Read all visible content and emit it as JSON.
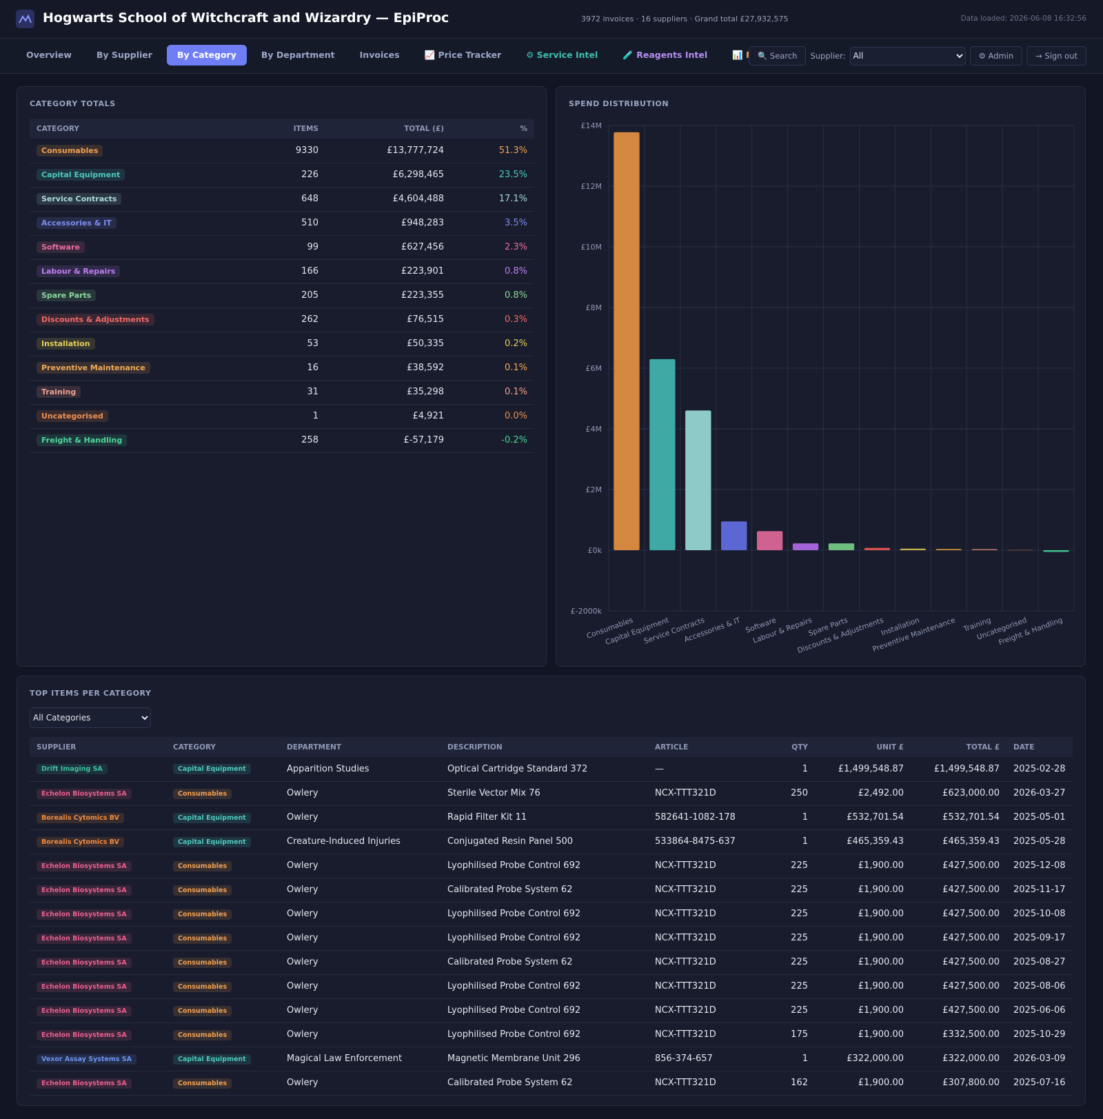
{
  "header": {
    "title": "Hogwarts School of Witchcraft and Wizardry — EpiProc",
    "stats": "3972 invoices · 16 suppliers · Grand total £27,932,575",
    "loaded": "Data loaded: 2026-06-08 16:32:56"
  },
  "nav": {
    "tabs": [
      {
        "label": "Overview"
      },
      {
        "label": "By Supplier"
      },
      {
        "label": "By Category",
        "active": true
      },
      {
        "label": "By Department"
      },
      {
        "label": "Invoices"
      },
      {
        "label": "📈 Price Tracker"
      },
      {
        "label": "⚙ Service Intel",
        "color": "#3fbfae"
      },
      {
        "label": "🧪 Reagents Intel",
        "color": "#b48ef0"
      },
      {
        "label": "📊 Reports",
        "color": "#f0a050"
      }
    ],
    "search": "Search",
    "supplier_label": "Supplier:",
    "supplier_value": "All",
    "admin": "⚙ Admin",
    "signout": "→ Sign out"
  },
  "category_totals": {
    "title": "CATEGORY TOTALS",
    "columns": [
      "CATEGORY",
      "ITEMS",
      "TOTAL (£)",
      "%"
    ],
    "rows": [
      {
        "name": "Consumables",
        "items": "9330",
        "total": "£13,777,724",
        "pct": "51.3%",
        "color": "#f0a050"
      },
      {
        "name": "Capital Equipment",
        "items": "226",
        "total": "£6,298,465",
        "pct": "23.5%",
        "color": "#4cc9bd"
      },
      {
        "name": "Service Contracts",
        "items": "648",
        "total": "£4,604,488",
        "pct": "17.1%",
        "color": "#a8dcd8"
      },
      {
        "name": "Accessories & IT",
        "items": "510",
        "total": "£948,283",
        "pct": "3.5%",
        "color": "#7d8cf0"
      },
      {
        "name": "Software",
        "items": "99",
        "total": "£627,456",
        "pct": "2.3%",
        "color": "#e86f9c"
      },
      {
        "name": "Labour & Repairs",
        "items": "166",
        "total": "£223,901",
        "pct": "0.8%",
        "color": "#bf7ef0"
      },
      {
        "name": "Spare Parts",
        "items": "205",
        "total": "£223,355",
        "pct": "0.8%",
        "color": "#8ad89a"
      },
      {
        "name": "Discounts & Adjustments",
        "items": "262",
        "total": "£76,515",
        "pct": "0.3%",
        "color": "#f06a66"
      },
      {
        "name": "Installation",
        "items": "53",
        "total": "£50,335",
        "pct": "0.2%",
        "color": "#e6cf5a"
      },
      {
        "name": "Preventive Maintenance",
        "items": "16",
        "total": "£38,592",
        "pct": "0.1%",
        "color": "#f0aa55"
      },
      {
        "name": "Training",
        "items": "31",
        "total": "£35,298",
        "pct": "0.1%",
        "color": "#f0a090"
      },
      {
        "name": "Uncategorised",
        "items": "1",
        "total": "£4,921",
        "pct": "0.0%",
        "color": "#f09050"
      },
      {
        "name": "Freight & Handling",
        "items": "258",
        "total": "£-57,179",
        "pct": "-0.2%",
        "color": "#4cd69a"
      }
    ]
  },
  "chart_data": {
    "type": "bar",
    "title": "SPEND DISTRIBUTION",
    "categories": [
      "Consumables",
      "Capital Equipment",
      "Service Contracts",
      "Accessories & IT",
      "Software",
      "Labour & Repairs",
      "Spare Parts",
      "Discounts & Adjustments",
      "Installation",
      "Preventive Maintenance",
      "Training",
      "Uncategorised",
      "Freight & Handling"
    ],
    "values": [
      13777724,
      6298465,
      4604488,
      948283,
      627456,
      223901,
      223355,
      76515,
      50335,
      38592,
      35298,
      4921,
      -57179
    ],
    "colors": [
      "#d4873f",
      "#3fa9a5",
      "#8ecac8",
      "#5b68d4",
      "#d0628f",
      "#a463d8",
      "#6fbf7f",
      "#d9534f",
      "#c9b24a",
      "#c9913a",
      "#c27d6a",
      "#d07a3a",
      "#3fbf8a"
    ],
    "ylim": [
      -2000000,
      14000000
    ],
    "yticks": [
      {
        "value": -2000000,
        "label": "£-2000k"
      },
      {
        "value": 0,
        "label": "£0k"
      },
      {
        "value": 2000000,
        "label": "£2M"
      },
      {
        "value": 4000000,
        "label": "£4M"
      },
      {
        "value": 6000000,
        "label": "£6M"
      },
      {
        "value": 8000000,
        "label": "£8M"
      },
      {
        "value": 10000000,
        "label": "£10M"
      },
      {
        "value": 12000000,
        "label": "£12M"
      },
      {
        "value": 14000000,
        "label": "£14M"
      }
    ],
    "grid": true
  },
  "top_items": {
    "title": "TOP ITEMS PER CATEGORY",
    "filter": "All Categories",
    "columns": [
      "SUPPLIER",
      "CATEGORY",
      "DEPARTMENT",
      "DESCRIPTION",
      "ARTICLE",
      "QTY",
      "UNIT £",
      "TOTAL £",
      "DATE"
    ],
    "supplier_colors": {
      "Drift Imaging SA": "#3fbfa0",
      "Echelon Biosystems SA": "#e8608f",
      "Borealis Cytomics BV": "#f08a3c",
      "Vexor Assay Systems SA": "#6b95f0"
    },
    "rows": [
      [
        "Drift Imaging SA",
        "Capital Equipment",
        "Apparition Studies",
        "Optical Cartridge Standard 372",
        "—",
        "1",
        "£1,499,548.87",
        "£1,499,548.87",
        "2025-02-28"
      ],
      [
        "Echelon Biosystems SA",
        "Consumables",
        "Owlery",
        "Sterile Vector Mix 76",
        "NCX-TTT321D",
        "250",
        "£2,492.00",
        "£623,000.00",
        "2026-03-27"
      ],
      [
        "Borealis Cytomics BV",
        "Capital Equipment",
        "Owlery",
        "Rapid Filter Kit 11",
        "582641-1082-178",
        "1",
        "£532,701.54",
        "£532,701.54",
        "2025-05-01"
      ],
      [
        "Borealis Cytomics BV",
        "Capital Equipment",
        "Creature-Induced Injuries",
        "Conjugated Resin Panel 500",
        "533864-8475-637",
        "1",
        "£465,359.43",
        "£465,359.43",
        "2025-05-28"
      ],
      [
        "Echelon Biosystems SA",
        "Consumables",
        "Owlery",
        "Lyophilised Probe Control 692",
        "NCX-TTT321D",
        "225",
        "£1,900.00",
        "£427,500.00",
        "2025-12-08"
      ],
      [
        "Echelon Biosystems SA",
        "Consumables",
        "Owlery",
        "Calibrated Probe System 62",
        "NCX-TTT321D",
        "225",
        "£1,900.00",
        "£427,500.00",
        "2025-11-17"
      ],
      [
        "Echelon Biosystems SA",
        "Consumables",
        "Owlery",
        "Lyophilised Probe Control 692",
        "NCX-TTT321D",
        "225",
        "£1,900.00",
        "£427,500.00",
        "2025-10-08"
      ],
      [
        "Echelon Biosystems SA",
        "Consumables",
        "Owlery",
        "Lyophilised Probe Control 692",
        "NCX-TTT321D",
        "225",
        "£1,900.00",
        "£427,500.00",
        "2025-09-17"
      ],
      [
        "Echelon Biosystems SA",
        "Consumables",
        "Owlery",
        "Calibrated Probe System 62",
        "NCX-TTT321D",
        "225",
        "£1,900.00",
        "£427,500.00",
        "2025-08-27"
      ],
      [
        "Echelon Biosystems SA",
        "Consumables",
        "Owlery",
        "Lyophilised Probe Control 692",
        "NCX-TTT321D",
        "225",
        "£1,900.00",
        "£427,500.00",
        "2025-08-06"
      ],
      [
        "Echelon Biosystems SA",
        "Consumables",
        "Owlery",
        "Lyophilised Probe Control 692",
        "NCX-TTT321D",
        "225",
        "£1,900.00",
        "£427,500.00",
        "2025-06-06"
      ],
      [
        "Echelon Biosystems SA",
        "Consumables",
        "Owlery",
        "Lyophilised Probe Control 692",
        "NCX-TTT321D",
        "175",
        "£1,900.00",
        "£332,500.00",
        "2025-10-29"
      ],
      [
        "Vexor Assay Systems SA",
        "Capital Equipment",
        "Magical Law Enforcement",
        "Magnetic Membrane Unit 296",
        "856-374-657",
        "1",
        "£322,000.00",
        "£322,000.00",
        "2026-03-09"
      ],
      [
        "Echelon Biosystems SA",
        "Consumables",
        "Owlery",
        "Calibrated Probe System 62",
        "NCX-TTT321D",
        "162",
        "£1,900.00",
        "£307,800.00",
        "2025-07-16"
      ]
    ]
  }
}
